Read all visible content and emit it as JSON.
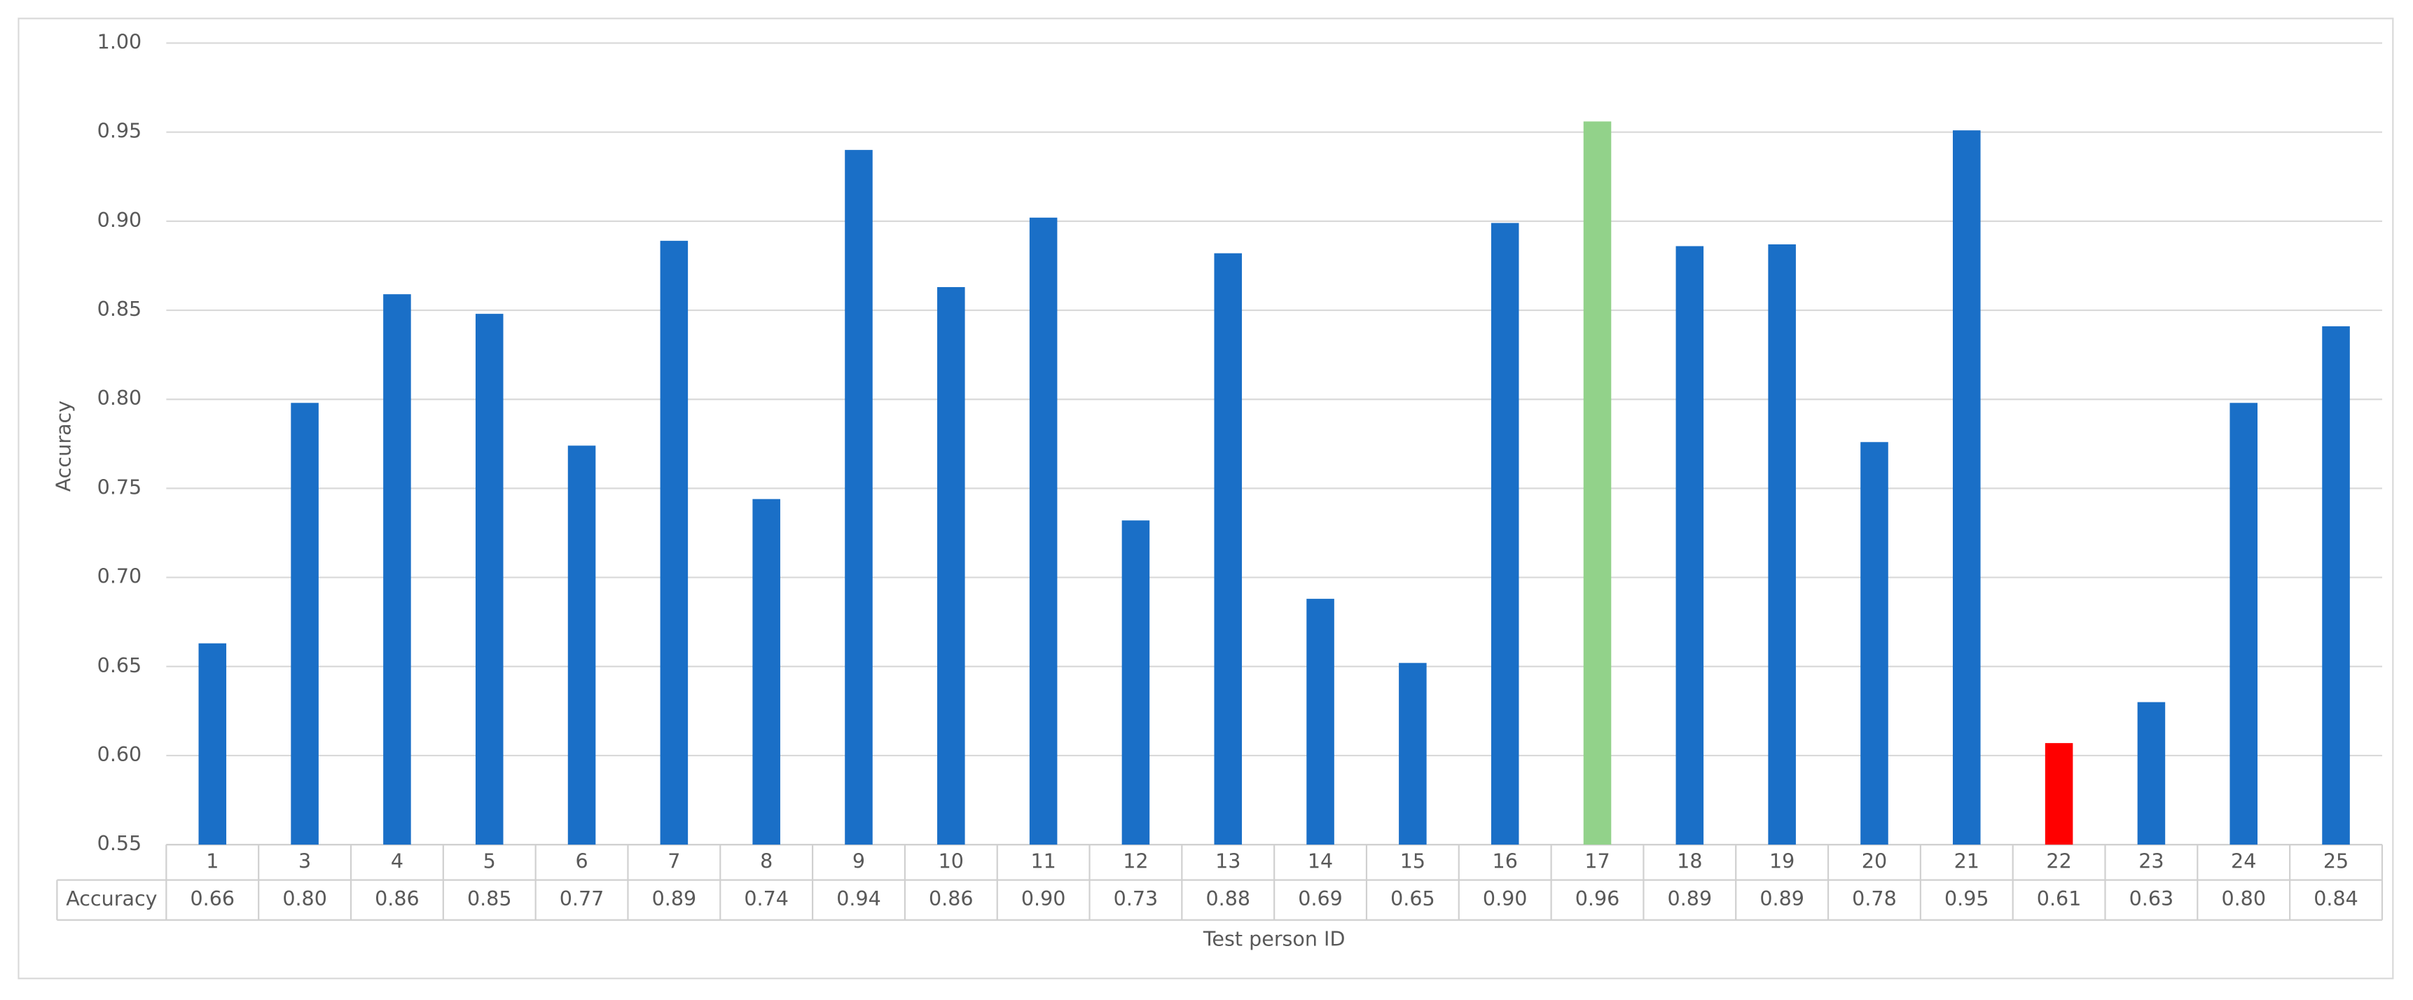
{
  "chart_data": {
    "type": "bar",
    "x_label": "Test person ID",
    "y_label": "Accuracy",
    "categories": [
      "1",
      "3",
      "4",
      "5",
      "6",
      "7",
      "8",
      "9",
      "10",
      "11",
      "12",
      "13",
      "14",
      "15",
      "16",
      "17",
      "18",
      "19",
      "20",
      "21",
      "22",
      "23",
      "24",
      "25"
    ],
    "series": [
      {
        "name": "Accuracy",
        "colors": [
          "#1a6fc7",
          "#1a6fc7",
          "#1a6fc7",
          "#1a6fc7",
          "#1a6fc7",
          "#1a6fc7",
          "#1a6fc7",
          "#1a6fc7",
          "#1a6fc7",
          "#1a6fc7",
          "#1a6fc7",
          "#1a6fc7",
          "#1a6fc7",
          "#1a6fc7",
          "#1a6fc7",
          "#92d28a",
          "#1a6fc7",
          "#1a6fc7",
          "#1a6fc7",
          "#1a6fc7",
          "#ff0000",
          "#1a6fc7",
          "#1a6fc7",
          "#1a6fc7"
        ],
        "values": [
          0.663,
          0.798,
          0.859,
          0.848,
          0.774,
          0.889,
          0.744,
          0.94,
          0.863,
          0.902,
          0.732,
          0.882,
          0.688,
          0.652,
          0.899,
          0.956,
          0.886,
          0.887,
          0.776,
          0.951,
          0.607,
          0.63,
          0.798,
          0.841
        ],
        "value_labels": [
          "0.66",
          "0.80",
          "0.86",
          "0.85",
          "0.77",
          "0.89",
          "0.74",
          "0.94",
          "0.86",
          "0.90",
          "0.73",
          "0.88",
          "0.69",
          "0.65",
          "0.90",
          "0.96",
          "0.89",
          "0.89",
          "0.78",
          "0.95",
          "0.61",
          "0.63",
          "0.80",
          "0.84"
        ]
      }
    ],
    "ylim": [
      0.55,
      1.0
    ],
    "yticks": [
      0.55,
      {
        "value": 0.6,
        "label": "0.60"
      },
      0.65,
      {
        "value": 0.7,
        "label": "0.70"
      },
      0.75,
      {
        "value": 0.8,
        "label": "0.80"
      },
      0.85,
      {
        "value": 0.9,
        "label": "0.90"
      },
      0.95,
      {
        "value": 1.0,
        "label": "1.00"
      }
    ],
    "grid": true
  }
}
